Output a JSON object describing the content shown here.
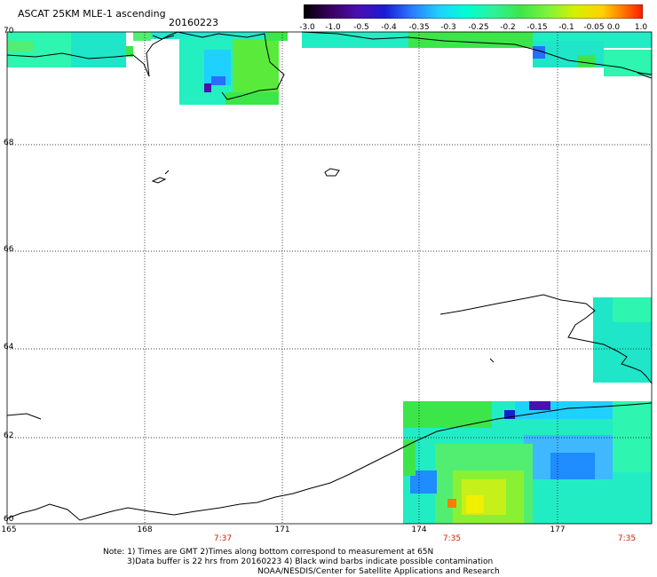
{
  "header": {
    "title": "ASCAT 25KM MLE-1 ascending",
    "date": "20160223"
  },
  "colorbar": {
    "labels": [
      "-3.0",
      "-1.0",
      "-0.5",
      "-0.4",
      "-0.35",
      "-0.3",
      "-0.25",
      "-0.2",
      "-0.15",
      "-0.1",
      "-0.05",
      "0.0",
      "1.0"
    ],
    "colors": [
      "#000000",
      "#4b0082",
      "#1c1cd6",
      "#2a7cff",
      "#1fd1ff",
      "#00ffd0",
      "#2df29a",
      "#3ce64a",
      "#7ff23c",
      "#d6f000",
      "#ffd200",
      "#ff7a00",
      "#ff1a00"
    ]
  },
  "map": {
    "lat_labels": [
      "70",
      "68",
      "66",
      "64",
      "62",
      "60"
    ],
    "lon_labels": [
      "165",
      "168",
      "171",
      "174",
      "177"
    ],
    "time_labels": [
      "7:37",
      "7:35",
      "7:35"
    ],
    "grid": true
  },
  "footer": {
    "line1": "Note: 1) Times are GMT 2)Times along bottom correspond to measurement at 65N",
    "line2": "3)Data buffer is 22 hrs from 20160223 4) Black wind barbs indicate possible contamination",
    "line3": "NOAA/NESDIS/Center for Satellite Applications and Research"
  }
}
